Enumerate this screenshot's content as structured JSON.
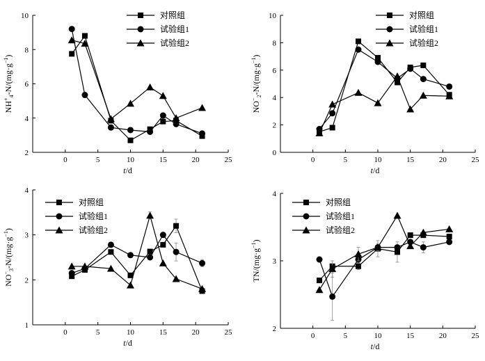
{
  "chart_data": [
    {
      "type": "line",
      "id": "nh4",
      "ylabel": "NH4+-N/(mg·g−1)",
      "ylabel_parts": {
        "base": "NH",
        "sub": "4",
        "sup": "+",
        "rest": "-N/(mg·g",
        "unit_sup": "−1",
        "close": ")"
      },
      "xlabel": "t/d",
      "xlabel_parts": {
        "var": "t",
        "unit": "/d"
      },
      "xlim": [
        -5,
        25
      ],
      "ylim": [
        2,
        10
      ],
      "xticks": [
        0,
        5,
        10,
        15,
        20,
        25
      ],
      "yticks": [
        2,
        4,
        6,
        8,
        10
      ],
      "series": [
        {
          "name": "对照组",
          "marker": "square",
          "x": [
            1,
            3,
            7,
            10,
            13,
            15,
            17,
            21
          ],
          "y": [
            7.75,
            8.8,
            3.85,
            2.7,
            3.35,
            3.8,
            3.85,
            2.95
          ]
        },
        {
          "name": "试验组1",
          "marker": "circle",
          "x": [
            1,
            3,
            7,
            10,
            13,
            15,
            17,
            21
          ],
          "y": [
            9.2,
            5.35,
            3.45,
            3.3,
            3.2,
            4.15,
            3.65,
            3.1
          ]
        },
        {
          "name": "试验组2",
          "marker": "triangle",
          "x": [
            1,
            3,
            7,
            10,
            13,
            15,
            17,
            21
          ],
          "y": [
            8.55,
            8.35,
            3.95,
            4.85,
            5.8,
            5.3,
            4.0,
            4.6
          ]
        }
      ]
    },
    {
      "type": "line",
      "id": "no2",
      "ylabel": "NO2−-N/(mg·g−1)",
      "ylabel_parts": {
        "base": "NO",
        "sub": "2",
        "sup": "−",
        "rest": "-N/(mg·g",
        "unit_sup": "−1",
        "close": ")"
      },
      "xlabel": "t/d",
      "xlabel_parts": {
        "var": "t",
        "unit": "/d"
      },
      "xlim": [
        -5,
        25
      ],
      "ylim": [
        0,
        10
      ],
      "xticks": [
        0,
        5,
        10,
        15,
        20,
        25
      ],
      "yticks": [
        0,
        2,
        4,
        6,
        8,
        10
      ],
      "series": [
        {
          "name": "对照组",
          "marker": "square",
          "x": [
            1,
            3,
            7,
            10,
            13,
            15,
            17,
            21
          ],
          "y": [
            1.5,
            1.8,
            8.1,
            6.9,
            5.1,
            6.2,
            6.35,
            4.2
          ]
        },
        {
          "name": "试验组1",
          "marker": "circle",
          "x": [
            1,
            3,
            7,
            10,
            13,
            15,
            17,
            21
          ],
          "y": [
            1.7,
            2.85,
            7.5,
            6.6,
            5.4,
            6.1,
            5.35,
            4.8
          ]
        },
        {
          "name": "试验组2",
          "marker": "triangle",
          "x": [
            1,
            3,
            7,
            10,
            13,
            15,
            17,
            21
          ],
          "y": [
            1.4,
            3.5,
            4.35,
            3.6,
            5.55,
            3.15,
            4.15,
            4.1
          ]
        }
      ]
    },
    {
      "type": "line",
      "id": "no3",
      "ylabel": "NO3−-N/(mg·g−1)",
      "ylabel_parts": {
        "base": "NO",
        "sub": "3",
        "sup": "−",
        "rest": "-N/(mg·g",
        "unit_sup": "−1",
        "close": ")"
      },
      "xlabel": "t/d",
      "xlabel_parts": {
        "var": "t",
        "unit": "/d"
      },
      "xlim": [
        -5,
        25
      ],
      "ylim": [
        1,
        4
      ],
      "xticks": [
        0,
        5,
        10,
        15,
        20,
        25
      ],
      "yticks": [
        1,
        2,
        3,
        4
      ],
      "series": [
        {
          "name": "对照组",
          "marker": "square",
          "x": [
            1,
            3,
            7,
            10,
            13,
            15,
            17,
            21
          ],
          "y": [
            2.08,
            2.22,
            2.62,
            2.1,
            2.63,
            2.78,
            3.2,
            1.75
          ],
          "err": [
            0,
            0,
            0,
            0,
            0,
            0.05,
            0.15,
            0
          ]
        },
        {
          "name": "试验组1",
          "marker": "circle",
          "x": [
            1,
            3,
            7,
            10,
            13,
            15,
            17,
            21
          ],
          "y": [
            2.15,
            2.25,
            2.78,
            2.55,
            2.5,
            3.0,
            2.62,
            2.37
          ],
          "err": [
            0,
            0,
            0,
            0.05,
            0,
            0,
            0.2,
            0.08
          ]
        },
        {
          "name": "试验组2",
          "marker": "triangle",
          "x": [
            1,
            3,
            7,
            10,
            13,
            15,
            17,
            21
          ],
          "y": [
            2.3,
            2.3,
            2.25,
            1.88,
            3.43,
            2.37,
            2.02,
            1.8
          ],
          "err": [
            0,
            0,
            0,
            0,
            0.08,
            0,
            0,
            0
          ]
        }
      ]
    },
    {
      "type": "line",
      "id": "tn",
      "ylabel": "TN/(mg·g−1)",
      "ylabel_parts": {
        "base": "TN",
        "sub": "",
        "sup": "",
        "rest": "/(mg·g",
        "unit_sup": "−1",
        "close": ")"
      },
      "xlabel": "t/d",
      "xlabel_parts": {
        "var": "t",
        "unit": "/d"
      },
      "xlim": [
        -5,
        25
      ],
      "ylim": [
        2,
        4
      ],
      "xticks": [
        0,
        5,
        10,
        15,
        20,
        25
      ],
      "yticks": [
        2,
        3,
        4
      ],
      "series": [
        {
          "name": "对照组",
          "marker": "square",
          "x": [
            1,
            3,
            7,
            10,
            13,
            15,
            17,
            21
          ],
          "y": [
            2.71,
            2.92,
            2.92,
            3.18,
            3.13,
            3.38,
            3.38,
            3.36
          ],
          "err": [
            0,
            0,
            0.05,
            0.12,
            0.15,
            0,
            0,
            0
          ]
        },
        {
          "name": "试验组1",
          "marker": "circle",
          "x": [
            1,
            3,
            7,
            10,
            13,
            15,
            17,
            21
          ],
          "y": [
            3.02,
            2.47,
            3.02,
            3.2,
            3.2,
            3.28,
            3.2,
            3.28
          ],
          "err": [
            0,
            0.35,
            0.05,
            0.05,
            0,
            0,
            0.08,
            0
          ]
        },
        {
          "name": "试验组2",
          "marker": "triangle",
          "x": [
            1,
            3,
            7,
            10,
            13,
            15,
            17,
            21
          ],
          "y": [
            2.57,
            2.88,
            3.1,
            3.2,
            3.67,
            3.22,
            3.42,
            3.47
          ],
          "err": [
            0,
            0.12,
            0.1,
            0,
            0,
            0,
            0,
            0
          ]
        }
      ]
    }
  ]
}
